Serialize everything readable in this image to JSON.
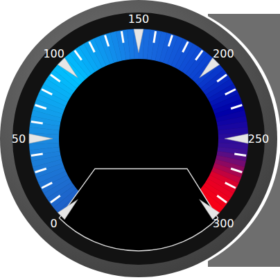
{
  "chart_data": {
    "type": "gauge",
    "ylim": [
      0,
      300
    ],
    "yticks": [
      0,
      50,
      100,
      150,
      200,
      250,
      300
    ],
    "minor_ticks": [
      10,
      20,
      30,
      40,
      60,
      70,
      80,
      90,
      110,
      120,
      130,
      140,
      160,
      170,
      180,
      190,
      210,
      220,
      230,
      260,
      270,
      280,
      290
    ]
  }
}
